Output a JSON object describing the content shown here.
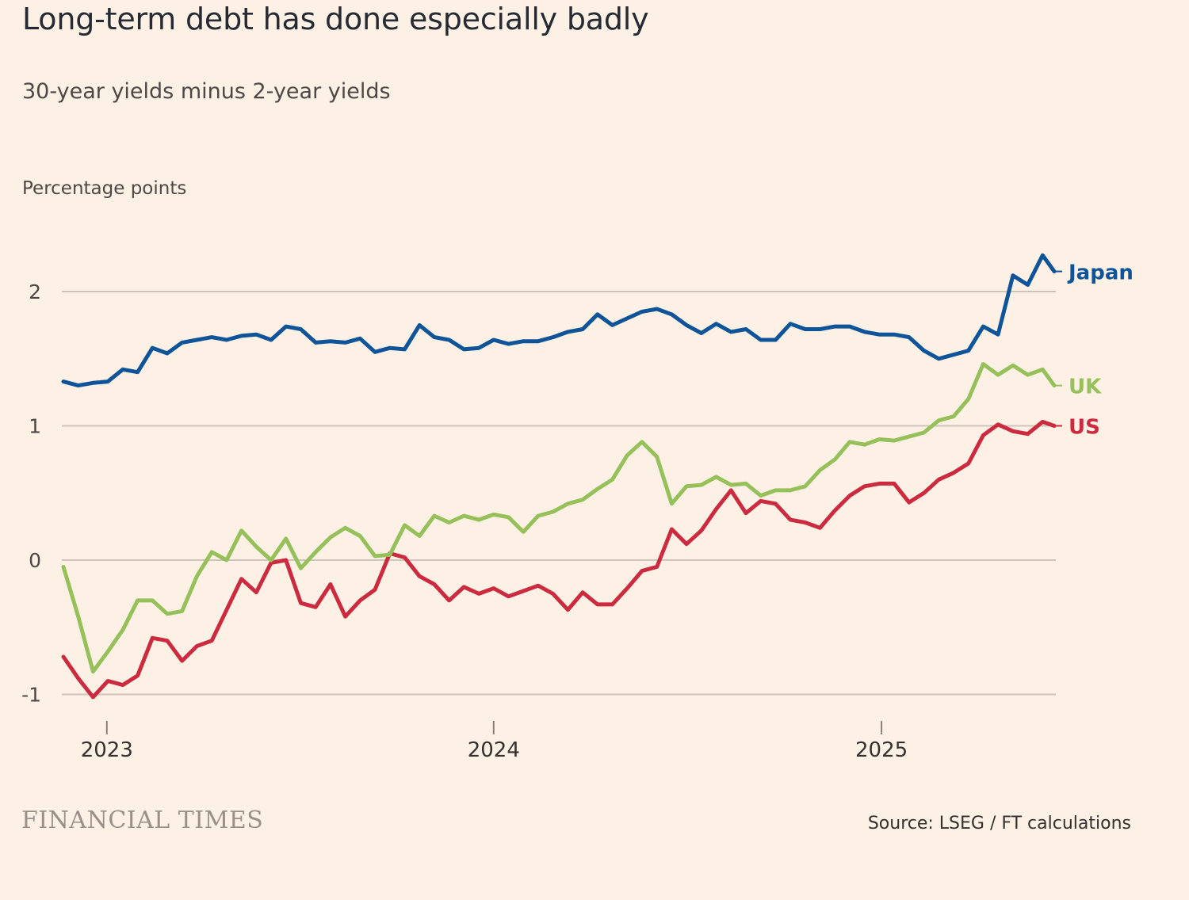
{
  "title": "Long-term debt has done especially badly",
  "subtitle": "30-year yields minus 2-year yields",
  "brand": "FINANCIAL TIMES",
  "source": "Source: LSEG / FT calculations",
  "colors": {
    "background": "#fdf1e6",
    "japan": "#0f5499",
    "uk": "#96c15a",
    "us": "#cc2b3f",
    "grid": "#cfc5bb"
  },
  "chart_data": {
    "type": "line",
    "ylabel": "Percentage points",
    "xlabel": "",
    "ylim": [
      -1.05,
      2.4
    ],
    "yticks": [
      -1,
      0,
      1,
      2
    ],
    "xlim": [
      "2022-11-21",
      "2025-06-13"
    ],
    "xticks": [
      {
        "label": "2023",
        "date": "2023-01-01"
      },
      {
        "label": "2024",
        "date": "2024-01-01"
      },
      {
        "label": "2025",
        "date": "2025-01-01"
      }
    ],
    "grid": true,
    "legend": "direct labels at line ends",
    "x": [
      "2022-11-21",
      "2022-12-05",
      "2022-12-19",
      "2023-01-02",
      "2023-01-16",
      "2023-01-30",
      "2023-02-13",
      "2023-02-27",
      "2023-03-13",
      "2023-03-27",
      "2023-04-10",
      "2023-04-24",
      "2023-05-08",
      "2023-05-22",
      "2023-06-05",
      "2023-06-19",
      "2023-07-03",
      "2023-07-17",
      "2023-07-31",
      "2023-08-14",
      "2023-08-28",
      "2023-09-11",
      "2023-09-25",
      "2023-10-09",
      "2023-10-23",
      "2023-11-06",
      "2023-11-20",
      "2023-12-04",
      "2023-12-18",
      "2024-01-01",
      "2024-01-15",
      "2024-01-29",
      "2024-02-12",
      "2024-02-26",
      "2024-03-11",
      "2024-03-25",
      "2024-04-08",
      "2024-04-22",
      "2024-05-06",
      "2024-05-20",
      "2024-06-03",
      "2024-06-17",
      "2024-07-01",
      "2024-07-15",
      "2024-07-29",
      "2024-08-12",
      "2024-08-26",
      "2024-09-09",
      "2024-09-23",
      "2024-10-07",
      "2024-10-21",
      "2024-11-04",
      "2024-11-18",
      "2024-12-02",
      "2024-12-16",
      "2024-12-30",
      "2025-01-13",
      "2025-01-27",
      "2025-02-10",
      "2025-02-24",
      "2025-03-10",
      "2025-03-24",
      "2025-04-07",
      "2025-04-21",
      "2025-05-05",
      "2025-05-19",
      "2025-06-02",
      "2025-06-13"
    ],
    "series": [
      {
        "name": "Japan",
        "color": "#0f5499",
        "values": [
          1.33,
          1.3,
          1.32,
          1.33,
          1.42,
          1.4,
          1.58,
          1.54,
          1.62,
          1.64,
          1.66,
          1.64,
          1.67,
          1.68,
          1.64,
          1.74,
          1.72,
          1.62,
          1.63,
          1.62,
          1.65,
          1.55,
          1.58,
          1.57,
          1.75,
          1.66,
          1.64,
          1.57,
          1.58,
          1.64,
          1.61,
          1.63,
          1.63,
          1.66,
          1.7,
          1.72,
          1.83,
          1.75,
          1.8,
          1.85,
          1.87,
          1.83,
          1.75,
          1.69,
          1.76,
          1.7,
          1.72,
          1.64,
          1.64,
          1.76,
          1.72,
          1.72,
          1.74,
          1.74,
          1.7,
          1.68,
          1.68,
          1.66,
          1.56,
          1.5,
          1.53,
          1.56,
          1.74,
          1.68,
          2.12,
          2.05,
          2.27,
          2.15
        ]
      },
      {
        "name": "UK",
        "color": "#96c15a",
        "values": [
          -0.05,
          -0.42,
          -0.83,
          -0.68,
          -0.52,
          -0.3,
          -0.3,
          -0.4,
          -0.38,
          -0.12,
          0.06,
          0.0,
          0.22,
          0.1,
          0.0,
          0.16,
          -0.06,
          0.06,
          0.17,
          0.24,
          0.18,
          0.03,
          0.04,
          0.26,
          0.18,
          0.33,
          0.28,
          0.33,
          0.3,
          0.34,
          0.32,
          0.21,
          0.33,
          0.36,
          0.42,
          0.45,
          0.53,
          0.6,
          0.78,
          0.88,
          0.77,
          0.42,
          0.55,
          0.56,
          0.62,
          0.56,
          0.57,
          0.48,
          0.52,
          0.52,
          0.55,
          0.67,
          0.75,
          0.88,
          0.86,
          0.9,
          0.89,
          0.92,
          0.95,
          1.04,
          1.07,
          1.2,
          1.46,
          1.38,
          1.45,
          1.38,
          1.42,
          1.3
        ]
      },
      {
        "name": "US",
        "color": "#cc2b3f",
        "values": [
          -0.72,
          -0.88,
          -1.02,
          -0.9,
          -0.93,
          -0.86,
          -0.58,
          -0.6,
          -0.75,
          -0.64,
          -0.6,
          -0.37,
          -0.14,
          -0.24,
          -0.02,
          0.0,
          -0.32,
          -0.35,
          -0.18,
          -0.42,
          -0.3,
          -0.22,
          0.05,
          0.02,
          -0.12,
          -0.18,
          -0.3,
          -0.2,
          -0.25,
          -0.21,
          -0.27,
          -0.23,
          -0.19,
          -0.25,
          -0.37,
          -0.24,
          -0.33,
          -0.33,
          -0.21,
          -0.08,
          -0.05,
          0.23,
          0.12,
          0.22,
          0.38,
          0.52,
          0.35,
          0.44,
          0.42,
          0.3,
          0.28,
          0.24,
          0.37,
          0.48,
          0.55,
          0.57,
          0.57,
          0.43,
          0.5,
          0.6,
          0.65,
          0.72,
          0.93,
          1.01,
          0.96,
          0.94,
          1.03,
          1.0
        ]
      }
    ]
  }
}
